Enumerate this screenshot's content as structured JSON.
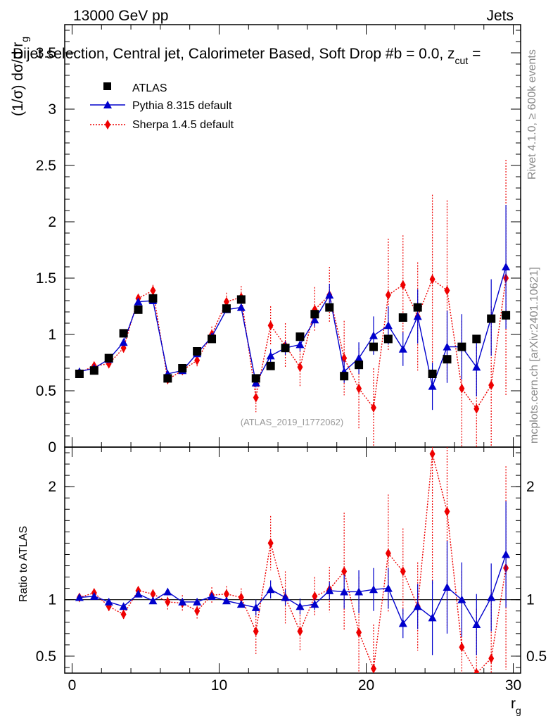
{
  "header": {
    "left": "13000 GeV pp",
    "right": "Jets"
  },
  "title": "Dijet selection, Central jet, Calorimeter Based, Soft Drop #b = 0.0, z",
  "title_sub": "cut",
  "title_tail": " =",
  "side_text": {
    "rivet": "Rivet 4.1.0, ≥ 600k events",
    "mcplots": "mcplots.cern.ch [arXiv:2401.10621]"
  },
  "watermark": "(ATLAS_2019_I1772062)",
  "ylabel_main": "(1/σ) dσ/d r",
  "ylabel_main_sub": "g",
  "ylabel_ratio": "Ratio to ATLAS",
  "xlabel": "r",
  "xlabel_sub": "g",
  "colors": {
    "data": "#000000",
    "pythia": "#0000cc",
    "sherpa": "#ee0000"
  },
  "chart_data": [
    {
      "type": "scatter",
      "panel": "main",
      "xlim": [
        -0.5,
        30.5
      ],
      "ylim": [
        0,
        3.75
      ],
      "xticks": [
        0,
        10,
        20,
        30
      ],
      "yticks": [
        0,
        0.5,
        1,
        1.5,
        2,
        2.5,
        3,
        3.5
      ],
      "ytick_labels": [
        "0",
        "0.5",
        "1",
        "1.5",
        "2",
        "2.5",
        "3",
        "3.5"
      ],
      "x": [
        0.5,
        1.5,
        2.5,
        3.5,
        4.5,
        5.5,
        6.5,
        7.5,
        8.5,
        9.5,
        10.5,
        11.5,
        12.5,
        13.5,
        14.5,
        15.5,
        16.5,
        17.5,
        18.5,
        19.5,
        20.5,
        21.5,
        22.5,
        23.5,
        24.5,
        25.5,
        26.5,
        27.5,
        28.5,
        29.5
      ],
      "legend": [
        "ATLAS",
        "Pythia 8.315 default",
        "Sherpa 1.4.5 default"
      ],
      "series": [
        {
          "name": "ATLAS",
          "values": [
            0.65,
            0.68,
            0.79,
            1.01,
            1.22,
            1.32,
            0.61,
            0.7,
            0.85,
            0.96,
            1.23,
            1.31,
            0.61,
            0.72,
            0.88,
            0.98,
            1.18,
            1.24,
            0.63,
            0.73,
            0.89,
            0.96,
            1.15,
            1.24,
            0.65,
            0.78,
            0.89,
            0.96,
            1.14,
            1.17
          ],
          "errors": [
            0.01,
            0.01,
            0.01,
            0.02,
            0.02,
            0.02,
            0.01,
            0.01,
            0.02,
            0.02,
            0.02,
            0.02,
            0.01,
            0.02,
            0.02,
            0.02,
            0.02,
            0.03,
            0.02,
            0.02,
            0.02,
            0.03,
            0.03,
            0.03,
            0.02,
            0.03,
            0.03,
            0.03,
            0.03,
            0.04
          ]
        },
        {
          "name": "Pythia 8.315 default",
          "values": [
            0.67,
            0.7,
            0.78,
            0.93,
            1.29,
            1.3,
            0.65,
            0.68,
            0.83,
            0.98,
            1.22,
            1.24,
            0.57,
            0.81,
            0.88,
            0.91,
            1.13,
            1.35,
            0.67,
            0.79,
            0.99,
            1.08,
            0.87,
            1.16,
            0.54,
            0.89,
            0.89,
            0.71,
            1.15,
            1.6
          ],
          "errors": [
            0.01,
            0.01,
            0.02,
            0.02,
            0.03,
            0.03,
            0.02,
            0.02,
            0.03,
            0.03,
            0.03,
            0.03,
            0.04,
            0.06,
            0.06,
            0.06,
            0.06,
            0.1,
            0.1,
            0.14,
            0.17,
            0.17,
            0.15,
            0.24,
            0.21,
            0.32,
            0.29,
            0.26,
            0.34,
            0.55
          ]
        },
        {
          "name": "Sherpa 1.4.5 default",
          "values": [
            0.66,
            0.72,
            0.74,
            0.88,
            1.32,
            1.39,
            0.6,
            0.68,
            0.77,
            1.0,
            1.29,
            1.33,
            0.44,
            1.08,
            0.9,
            0.71,
            1.22,
            1.35,
            0.79,
            0.52,
            0.35,
            1.35,
            1.44,
            1.16,
            1.49,
            1.39,
            0.52,
            0.34,
            0.55,
            1.5
          ],
          "errors": [
            0.02,
            0.02,
            0.03,
            0.04,
            0.04,
            0.05,
            0.04,
            0.05,
            0.06,
            0.07,
            0.08,
            0.1,
            0.13,
            0.17,
            0.2,
            0.17,
            0.2,
            0.25,
            0.33,
            0.36,
            0.35,
            0.5,
            0.44,
            0.48,
            0.75,
            0.8,
            0.6,
            0.55,
            0.7,
            1.05
          ]
        }
      ]
    },
    {
      "type": "scatter",
      "panel": "ratio",
      "xlim": [
        -0.5,
        30.5
      ],
      "ylim": [
        0.35,
        2.35
      ],
      "xticks": [
        0,
        10,
        20,
        30
      ],
      "xtick_labels": [
        "0",
        "10",
        "20",
        "30"
      ],
      "yticks": [
        0.5,
        1,
        2
      ],
      "ytick_labels": [
        "0.5",
        "1",
        "2"
      ],
      "reference": 1,
      "x": [
        0.5,
        1.5,
        2.5,
        3.5,
        4.5,
        5.5,
        6.5,
        7.5,
        8.5,
        9.5,
        10.5,
        11.5,
        12.5,
        13.5,
        14.5,
        15.5,
        16.5,
        17.5,
        18.5,
        19.5,
        20.5,
        21.5,
        22.5,
        23.5,
        24.5,
        25.5,
        26.5,
        27.5,
        28.5,
        29.5
      ],
      "series": [
        {
          "name": "Pythia 8.315 default",
          "values": [
            1.02,
            1.03,
            0.98,
            0.94,
            1.05,
            0.99,
            1.07,
            0.98,
            0.98,
            1.03,
            0.99,
            0.96,
            0.93,
            1.09,
            1.02,
            0.94,
            0.96,
            1.08,
            1.07,
            1.07,
            1.09,
            1.1,
            0.79,
            0.94,
            0.84,
            1.11,
            1.0,
            0.78,
            1.02,
            1.4
          ],
          "errors": [
            0.02,
            0.02,
            0.02,
            0.02,
            0.02,
            0.02,
            0.03,
            0.02,
            0.03,
            0.03,
            0.02,
            0.02,
            0.07,
            0.08,
            0.07,
            0.07,
            0.05,
            0.08,
            0.15,
            0.19,
            0.19,
            0.18,
            0.13,
            0.2,
            0.33,
            0.41,
            0.33,
            0.27,
            0.3,
            0.47
          ]
        },
        {
          "name": "Sherpa 1.4.5 default",
          "values": [
            1.02,
            1.06,
            0.94,
            0.87,
            1.08,
            1.05,
            0.98,
            0.97,
            0.9,
            1.04,
            1.05,
            1.02,
            0.72,
            1.5,
            1.02,
            0.72,
            1.03,
            1.09,
            1.25,
            0.71,
            0.39,
            1.41,
            1.25,
            0.94,
            2.29,
            1.78,
            0.58,
            0.35,
            0.48,
            1.28
          ],
          "errors": [
            0.03,
            0.03,
            0.04,
            0.04,
            0.03,
            0.04,
            0.07,
            0.07,
            0.07,
            0.07,
            0.07,
            0.08,
            0.21,
            0.24,
            0.23,
            0.17,
            0.17,
            0.2,
            0.52,
            0.49,
            0.39,
            0.52,
            0.38,
            0.39,
            1.15,
            1.03,
            0.67,
            0.57,
            0.61,
            0.9
          ]
        }
      ]
    }
  ]
}
